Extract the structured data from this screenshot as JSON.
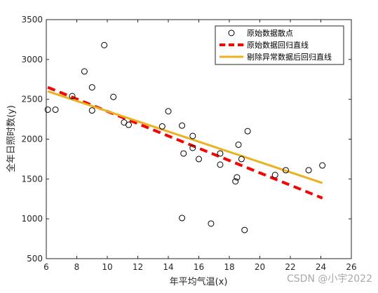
{
  "chart_data": {
    "type": "scatter",
    "xlabel": "年平均气温(x)",
    "ylabel": "全年日照时数(y)",
    "xlim": [
      6,
      26
    ],
    "ylim": [
      500,
      3500
    ],
    "x_ticks": [
      6,
      8,
      10,
      12,
      14,
      16,
      18,
      20,
      22,
      24,
      26
    ],
    "y_ticks": [
      500,
      1000,
      1500,
      2000,
      2500,
      3000,
      3500
    ],
    "legend_position": "top-right",
    "grid": false,
    "series": [
      {
        "name": "原始数据散点",
        "kind": "scatter",
        "marker": "open-circle",
        "color": "#000000",
        "points": [
          [
            6.1,
            2370
          ],
          [
            6.6,
            2370
          ],
          [
            7.7,
            2540
          ],
          [
            8.5,
            2850
          ],
          [
            9.0,
            2650
          ],
          [
            9.0,
            2360
          ],
          [
            9.8,
            3180
          ],
          [
            10.4,
            2530
          ],
          [
            11.1,
            2210
          ],
          [
            11.4,
            2180
          ],
          [
            13.6,
            2160
          ],
          [
            14.0,
            2350
          ],
          [
            14.9,
            2170
          ],
          [
            15.0,
            1820
          ],
          [
            15.6,
            1890
          ],
          [
            15.6,
            2040
          ],
          [
            16.0,
            1750
          ],
          [
            17.4,
            1820
          ],
          [
            17.4,
            1680
          ],
          [
            18.4,
            1470
          ],
          [
            18.5,
            1520
          ],
          [
            18.6,
            1930
          ],
          [
            18.8,
            1750
          ],
          [
            19.2,
            2100
          ],
          [
            21.0,
            1550
          ],
          [
            21.7,
            1610
          ],
          [
            23.2,
            1610
          ],
          [
            24.1,
            1670
          ],
          [
            14.9,
            1010
          ],
          [
            16.8,
            940
          ],
          [
            19.0,
            860
          ]
        ]
      },
      {
        "name": "原始数据回归直线",
        "kind": "line",
        "style": "dashed",
        "color": "#ff0000",
        "points": [
          [
            6.1,
            2650
          ],
          [
            24.1,
            1260
          ]
        ]
      },
      {
        "name": "剔除异常数据后回归直线",
        "kind": "line",
        "style": "solid",
        "color": "#edb120",
        "points": [
          [
            6.1,
            2600
          ],
          [
            24.1,
            1450
          ]
        ]
      }
    ]
  },
  "watermark": "CSDN @小宇2022"
}
